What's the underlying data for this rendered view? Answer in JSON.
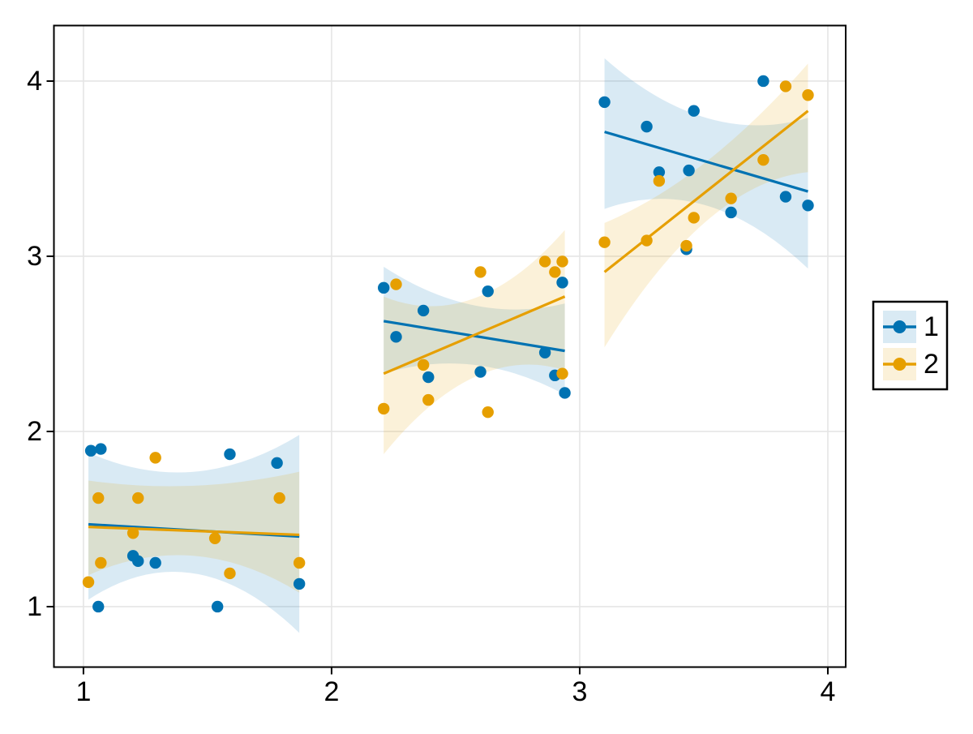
{
  "figure": {
    "background": "#ffffff"
  },
  "chart_data": {
    "type": "scatter",
    "title": "",
    "xlabel": "",
    "ylabel": "",
    "axes": {
      "xlim": [
        0.881,
        4.072
      ],
      "ylim": [
        0.655,
        4.317
      ],
      "xticks": [
        "1",
        "2",
        "3",
        "4"
      ],
      "xtick_values": [
        1,
        2,
        3,
        4
      ],
      "yticks": [
        "1",
        "2",
        "3",
        "4"
      ],
      "ytick_values": [
        1,
        2,
        3,
        4
      ],
      "grid": true,
      "grid_color": "#e5e5e5",
      "spine_color": "#000000",
      "tick_color": "#000000"
    },
    "legend": {
      "position": "right-outside",
      "border_color": "#000000",
      "background": "#ffffff",
      "entries": [
        {
          "label": "1",
          "color": "#0072B2",
          "band_color": "rgba(0,114,178,0.15)"
        },
        {
          "label": "2",
          "color": "#E69F00",
          "band_color": "rgba(230,159,0,0.15)"
        }
      ]
    },
    "series": [
      {
        "name": "1",
        "color": "#0072B2",
        "band_color": "rgba(0,114,178,0.15)",
        "marker_radius": 7.2,
        "points": [
          [
            1.03,
            1.89
          ],
          [
            1.07,
            1.9
          ],
          [
            1.06,
            1.0
          ],
          [
            1.2,
            1.29
          ],
          [
            1.22,
            1.26
          ],
          [
            1.29,
            1.25
          ],
          [
            1.54,
            1.0
          ],
          [
            1.59,
            1.87
          ],
          [
            1.78,
            1.82
          ],
          [
            1.87,
            1.13
          ],
          [
            2.21,
            2.82
          ],
          [
            2.26,
            2.54
          ],
          [
            2.37,
            2.69
          ],
          [
            2.39,
            2.31
          ],
          [
            2.6,
            2.34
          ],
          [
            2.63,
            2.8
          ],
          [
            2.86,
            2.45
          ],
          [
            2.9,
            2.32
          ],
          [
            2.93,
            2.85
          ],
          [
            2.94,
            2.22
          ],
          [
            3.1,
            3.88
          ],
          [
            3.27,
            3.74
          ],
          [
            3.32,
            3.48
          ],
          [
            3.43,
            3.04
          ],
          [
            3.44,
            3.49
          ],
          [
            3.46,
            3.83
          ],
          [
            3.61,
            3.25
          ],
          [
            3.74,
            4.0
          ],
          [
            3.83,
            3.34
          ],
          [
            3.92,
            3.29
          ]
        ],
        "regressions": [
          {
            "x1": 1.02,
            "y1": 1.47,
            "x2": 1.87,
            "y2": 1.4,
            "band": {
              "x": [
                1.02,
                1.445,
                1.87
              ],
              "top": [
                1.88,
                1.77,
                1.98
              ],
              "bottom": [
                1.04,
                1.19,
                0.85
              ]
            }
          },
          {
            "x1": 2.21,
            "y1": 2.63,
            "x2": 2.94,
            "y2": 2.46,
            "band": {
              "x": [
                2.21,
                2.575,
                2.94
              ],
              "top": [
                2.94,
                2.72,
                2.73
              ],
              "bottom": [
                2.33,
                2.38,
                2.21
              ]
            }
          },
          {
            "x1": 3.1,
            "y1": 3.71,
            "x2": 3.92,
            "y2": 3.37,
            "band": {
              "x": [
                3.1,
                3.51,
                3.92
              ],
              "top": [
                4.13,
                3.79,
                3.79
              ],
              "bottom": [
                3.27,
                3.29,
                2.93
              ]
            }
          }
        ]
      },
      {
        "name": "2",
        "color": "#E69F00",
        "band_color": "rgba(230,159,0,0.15)",
        "marker_radius": 7.2,
        "points": [
          [
            1.02,
            1.14
          ],
          [
            1.06,
            1.62
          ],
          [
            1.07,
            1.25
          ],
          [
            1.2,
            1.42
          ],
          [
            1.22,
            1.62
          ],
          [
            1.29,
            1.85
          ],
          [
            1.53,
            1.39
          ],
          [
            1.59,
            1.19
          ],
          [
            1.79,
            1.62
          ],
          [
            1.87,
            1.25
          ],
          [
            2.21,
            2.13
          ],
          [
            2.26,
            2.84
          ],
          [
            2.37,
            2.38
          ],
          [
            2.39,
            2.18
          ],
          [
            2.6,
            2.91
          ],
          [
            2.63,
            2.11
          ],
          [
            2.86,
            2.97
          ],
          [
            2.9,
            2.91
          ],
          [
            2.93,
            2.97
          ],
          [
            2.93,
            2.33
          ],
          [
            3.1,
            3.08
          ],
          [
            3.27,
            3.09
          ],
          [
            3.32,
            3.43
          ],
          [
            3.43,
            3.06
          ],
          [
            3.46,
            3.22
          ],
          [
            3.61,
            3.33
          ],
          [
            3.74,
            3.55
          ],
          [
            3.83,
            3.97
          ],
          [
            3.92,
            3.92
          ]
        ],
        "regressions": [
          {
            "x1": 1.02,
            "y1": 1.455,
            "x2": 1.87,
            "y2": 1.41,
            "band": {
              "x": [
                1.02,
                1.445,
                1.87
              ],
              "top": [
                1.72,
                1.69,
                1.77
              ],
              "bottom": [
                1.18,
                1.29,
                1.08
              ]
            }
          },
          {
            "x1": 2.21,
            "y1": 2.33,
            "x2": 2.94,
            "y2": 2.77,
            "band": {
              "x": [
                2.21,
                2.575,
                2.94
              ],
              "top": [
                2.77,
                2.76,
                3.15
              ],
              "bottom": [
                1.87,
                2.31,
                2.35
              ]
            }
          },
          {
            "x1": 3.1,
            "y1": 2.91,
            "x2": 3.92,
            "y2": 3.83,
            "band": {
              "x": [
                3.1,
                3.51,
                3.92
              ],
              "top": [
                3.19,
                3.54,
                4.1
              ],
              "bottom": [
                2.48,
                3.2,
                3.48
              ]
            }
          }
        ]
      }
    ]
  }
}
